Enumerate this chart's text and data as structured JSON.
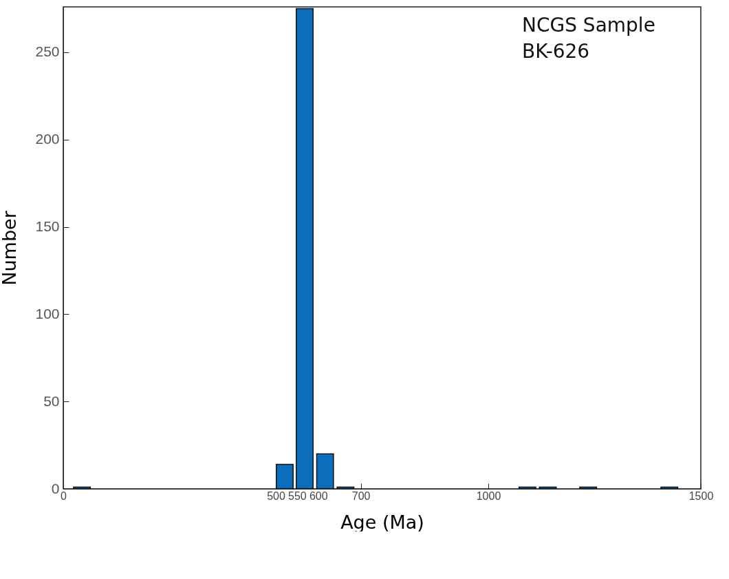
{
  "chart_data": {
    "type": "bar",
    "xlabel": "Age (Ma)",
    "ylabel": "Number",
    "x": [
      44,
      521,
      568,
      616,
      664,
      1092,
      1140,
      1235,
      1426
    ],
    "values": [
      1,
      14,
      275,
      20,
      1,
      1,
      1,
      1,
      1
    ],
    "color": "#0a6ebd",
    "xlim": [
      0,
      1500
    ],
    "xticks": [
      0,
      500,
      550,
      600,
      700,
      1000,
      1500
    ],
    "ylim": [
      0,
      276
    ],
    "yticks": [
      0,
      50,
      100,
      150,
      200,
      250
    ],
    "grid": false,
    "annotations": [
      "NCGS Sample\nBK-626"
    ]
  }
}
